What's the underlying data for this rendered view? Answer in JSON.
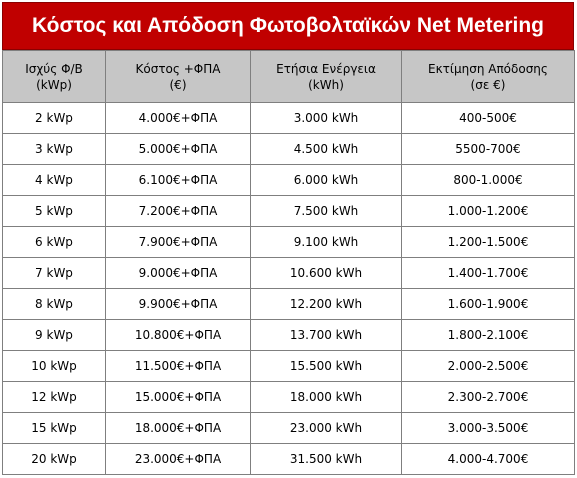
{
  "title": "Κόστος και Απόδοση Φωτοβολταϊκών Net Metering",
  "headers": [
    {
      "line1": "Ισχύς Φ/Β",
      "line2": "(kWp)"
    },
    {
      "line1": "Κόστος +ΦΠΑ",
      "line2": "(€)"
    },
    {
      "line1": "Ετήσια Ενέργεια",
      "line2": "(kWh)"
    },
    {
      "line1": "Εκτίμηση Απόδοσης",
      "line2": "(σε €)"
    }
  ],
  "rows": [
    [
      "2 kWp",
      "4.000€+ΦΠΑ",
      "3.000 kWh",
      "400-500€"
    ],
    [
      "3 kWp",
      "5.000€+ΦΠΑ",
      "4.500 kWh",
      "5500-700€"
    ],
    [
      "4 kWp",
      "6.100€+ΦΠΑ",
      "6.000 kWh",
      "800-1.000€"
    ],
    [
      "5 kWp",
      "7.200€+ΦΠΑ",
      "7.500 kWh",
      "1.000-1.200€"
    ],
    [
      "6 kWp",
      "7.900€+ΦΠΑ",
      "9.100 kWh",
      "1.200-1.500€"
    ],
    [
      "7 kWp",
      "9.000€+ΦΠΑ",
      "10.600 kWh",
      "1.400-1.700€"
    ],
    [
      "8 kWp",
      "9.900€+ΦΠΑ",
      "12.200 kWh",
      "1.600-1.900€"
    ],
    [
      "9 kWp",
      "10.800€+ΦΠΑ",
      "13.700 kWh",
      "1.800-2.100€"
    ],
    [
      "10 kWp",
      "11.500€+ΦΠΑ",
      "15.500 kWh",
      "2.000-2.500€"
    ],
    [
      "12 kWp",
      "15.000€+ΦΠΑ",
      "18.000 kWh",
      "2.300-2.700€"
    ],
    [
      "15 kWp",
      "18.000€+ΦΠΑ",
      "23.000 kWh",
      "3.000-3.500€"
    ],
    [
      "20 kWp",
      "23.000€+ΦΠΑ",
      "31.500 kWh",
      "4.000-4.700€"
    ]
  ],
  "colors": {
    "title_bg": "#c00000",
    "title_text": "#ffffff",
    "header_bg": "#c6c6c6",
    "border": "#7f7f7f"
  }
}
